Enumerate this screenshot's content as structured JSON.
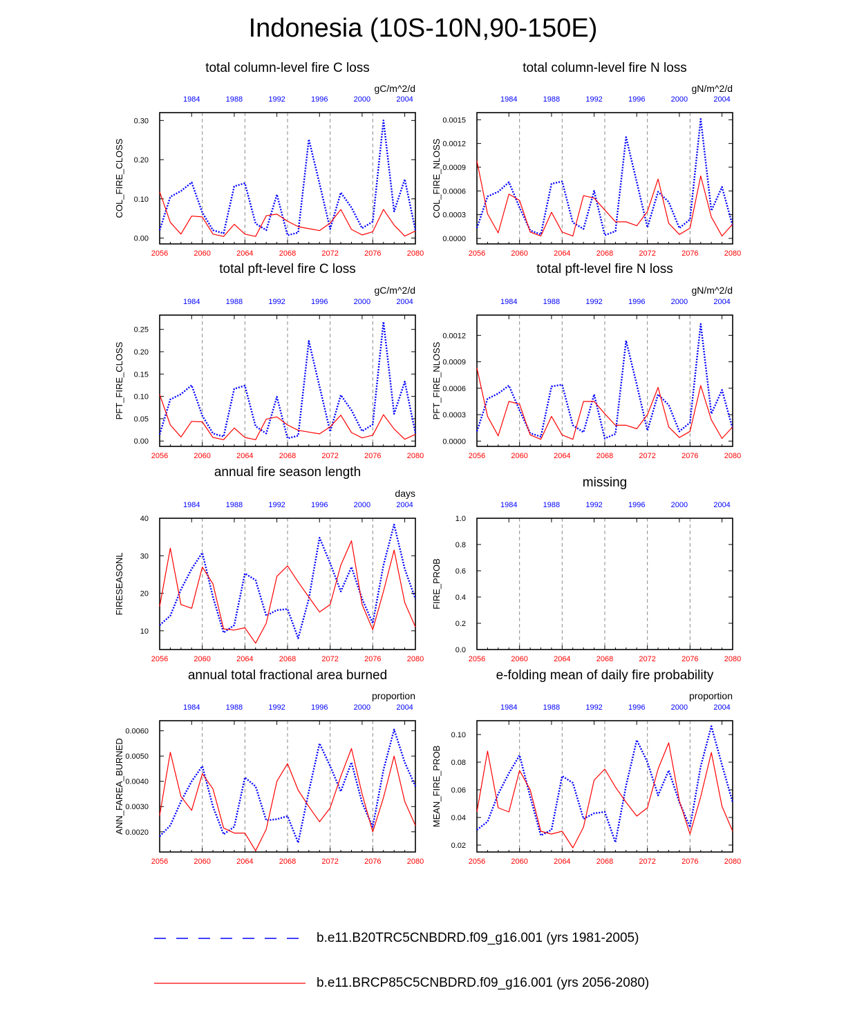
{
  "title": "Indonesia (10S-10N,90-150E)",
  "colors": {
    "baseline": "#0000ff",
    "future": "#ff0000",
    "axis": "#000000",
    "grid": "#888888"
  },
  "axes": {
    "bottom_ticks": [
      "2056",
      "2060",
      "2064",
      "2068",
      "2072",
      "2076",
      "2080"
    ],
    "bottom_values": [
      2056,
      2060,
      2064,
      2068,
      2072,
      2076,
      2080
    ],
    "top_ticks": [
      "1984",
      "1988",
      "1992",
      "1996",
      "2000",
      "2004"
    ],
    "top_values": [
      1984,
      1988,
      1992,
      1996,
      2000,
      2004
    ]
  },
  "legend": {
    "baseline_label": "b.e11.B20TRC5CNBDRD.f09_g16.001 (yrs 1981-2005)",
    "future_label": "b.e11.BRCP85C5CNBDRD.f09_g16.001 (yrs 2056-2080)"
  },
  "panels": {
    "p1": {
      "title": "total column-level fire C loss",
      "units": "gC/m^2/d"
    },
    "p2": {
      "title": "total column-level fire N loss",
      "units": "gN/m^2/d"
    },
    "p3": {
      "title": "total pft-level fire C loss",
      "units": "gC/m^2/d"
    },
    "p4": {
      "title": "total pft-level fire N loss",
      "units": "gN/m^2/d"
    },
    "p5": {
      "title": "annual fire season length",
      "units": "days"
    },
    "p6": {
      "title": "missing",
      "units": ""
    },
    "p7": {
      "title": "annual total fractional area burned",
      "units": "proportion"
    },
    "p8": {
      "title": "e-folding mean of daily fire probability",
      "units": "proportion"
    }
  },
  "chart_data": [
    {
      "type": "line",
      "id": "p1",
      "ylabel": "COL_FIRE_CLOSS",
      "ylim": [
        -0.015,
        0.32
      ],
      "yticks": [
        0,
        0.1,
        0.2,
        0.3
      ],
      "ytick_labels": [
        "0.00",
        "0.10",
        "0.20",
        "0.30"
      ],
      "x": [
        2056,
        2057,
        2058,
        2059,
        2060,
        2061,
        2062,
        2063,
        2064,
        2065,
        2066,
        2067,
        2068,
        2069,
        2070,
        2071,
        2072,
        2073,
        2074,
        2075,
        2076,
        2077,
        2078,
        2079,
        2080
      ],
      "series": [
        {
          "name": "b.e11.B20TRC5CNBDRD.f09_g16.001 (yrs 1981-2005)",
          "values": [
            0.02,
            0.105,
            0.12,
            0.142,
            0.065,
            0.02,
            0.012,
            0.132,
            0.14,
            0.037,
            0.02,
            0.111,
            0.007,
            0.014,
            0.252,
            0.139,
            0.023,
            0.116,
            0.078,
            0.025,
            0.042,
            0.3,
            0.068,
            0.15,
            0.02
          ]
        },
        {
          "name": "b.e11.BRCP85C5CNBDRD.f09_g16.001 (yrs 2056-2080)",
          "values": [
            0.118,
            0.04,
            0.01,
            0.056,
            0.054,
            0.01,
            0.004,
            0.035,
            0.01,
            0.004,
            0.057,
            0.061,
            0.043,
            0.029,
            0.024,
            0.019,
            0.038,
            0.073,
            0.022,
            0.008,
            0.016,
            0.073,
            0.033,
            0.005,
            0.018
          ]
        }
      ]
    },
    {
      "type": "line",
      "id": "p2",
      "ylabel": "COL_FIRE_NLOSS",
      "ylim": [
        -7e-05,
        0.00159
      ],
      "yticks": [
        0,
        0.0003,
        0.0006,
        0.0009,
        0.0012,
        0.0015
      ],
      "ytick_labels": [
        "0.0000",
        "0.0003",
        "0.0006",
        "0.0009",
        "0.0012",
        "0.0015"
      ],
      "x": [
        2056,
        2057,
        2058,
        2059,
        2060,
        2061,
        2062,
        2063,
        2064,
        2065,
        2066,
        2067,
        2068,
        2069,
        2070,
        2071,
        2072,
        2073,
        2074,
        2075,
        2076,
        2077,
        2078,
        2079,
        2080
      ],
      "series": [
        {
          "name": "b.e11.B20TRC5CNBDRD.f09_g16.001 (yrs 1981-2005)",
          "values": [
            0.00013,
            0.00053,
            0.00059,
            0.00071,
            0.00039,
            0.0001,
            5e-05,
            0.00069,
            0.00072,
            0.0002,
            0.00012,
            0.0006,
            4e-05,
            9e-05,
            0.00128,
            0.00071,
            0.00014,
            0.00059,
            0.00046,
            0.00013,
            0.00024,
            0.00151,
            0.00035,
            0.00065,
            0.00016
          ]
        },
        {
          "name": "b.e11.BRCP85C5CNBDRD.f09_g16.001 (yrs 2056-2080)",
          "values": [
            0.00098,
            0.00031,
            7e-05,
            0.00056,
            0.00048,
            8e-05,
            3e-05,
            0.00033,
            8e-05,
            3e-05,
            0.00054,
            0.00051,
            0.00036,
            0.00021,
            0.00021,
            0.00016,
            0.00034,
            0.00075,
            0.00019,
            5e-05,
            0.00013,
            0.00079,
            0.00027,
            3e-05,
            0.00018
          ]
        }
      ]
    },
    {
      "type": "line",
      "id": "p3",
      "ylabel": "PFT_FIRE_CLOSS",
      "ylim": [
        -0.012,
        0.282
      ],
      "yticks": [
        0,
        0.05,
        0.1,
        0.15,
        0.2,
        0.25
      ],
      "ytick_labels": [
        "0.00",
        "0.05",
        "0.10",
        "0.15",
        "0.20",
        "0.25"
      ],
      "x": [
        2056,
        2057,
        2058,
        2059,
        2060,
        2061,
        2062,
        2063,
        2064,
        2065,
        2066,
        2067,
        2068,
        2069,
        2070,
        2071,
        2072,
        2073,
        2074,
        2075,
        2076,
        2077,
        2078,
        2079,
        2080
      ],
      "series": [
        {
          "name": "b.e11.B20TRC5CNBDRD.f09_g16.001 (yrs 1981-2005)",
          "values": [
            0.015,
            0.093,
            0.105,
            0.125,
            0.057,
            0.017,
            0.01,
            0.117,
            0.124,
            0.033,
            0.017,
            0.099,
            0.006,
            0.012,
            0.224,
            0.122,
            0.021,
            0.103,
            0.069,
            0.022,
            0.037,
            0.267,
            0.061,
            0.133,
            0.018
          ]
        },
        {
          "name": "b.e11.BRCP85C5CNBDRD.f09_g16.001 (yrs 2056-2080)",
          "values": [
            0.104,
            0.036,
            0.009,
            0.044,
            0.043,
            0.008,
            0.003,
            0.029,
            0.008,
            0.003,
            0.049,
            0.054,
            0.036,
            0.024,
            0.02,
            0.016,
            0.032,
            0.058,
            0.019,
            0.007,
            0.013,
            0.059,
            0.027,
            0.004,
            0.015
          ]
        }
      ]
    },
    {
      "type": "line",
      "id": "p4",
      "ylabel": "PFT_FIRE_NLOSS",
      "ylim": [
        -6e-05,
        0.00143
      ],
      "yticks": [
        0,
        0.0003,
        0.0006,
        0.0009,
        0.0012
      ],
      "ytick_labels": [
        "0.0000",
        "0.0003",
        "0.0006",
        "0.0009",
        "0.0012"
      ],
      "x": [
        2056,
        2057,
        2058,
        2059,
        2060,
        2061,
        2062,
        2063,
        2064,
        2065,
        2066,
        2067,
        2068,
        2069,
        2070,
        2071,
        2072,
        2073,
        2074,
        2075,
        2076,
        2077,
        2078,
        2079,
        2080
      ],
      "series": [
        {
          "name": "b.e11.B20TRC5CNBDRD.f09_g16.001 (yrs 1981-2005)",
          "values": [
            0.00011,
            0.00048,
            0.00054,
            0.00063,
            0.00035,
            9e-05,
            5e-05,
            0.00062,
            0.00064,
            0.00018,
            0.0001,
            0.00053,
            3e-05,
            8e-05,
            0.00114,
            0.00064,
            0.00012,
            0.00053,
            0.00041,
            0.00011,
            0.00021,
            0.00133,
            0.00031,
            0.00058,
            0.00014
          ]
        },
        {
          "name": "b.e11.BRCP85C5CNBDRD.f09_g16.001 (yrs 2056-2080)",
          "values": [
            0.00083,
            0.00028,
            6e-05,
            0.00045,
            0.00042,
            7e-05,
            2e-05,
            0.00028,
            7e-05,
            2e-05,
            0.00045,
            0.00045,
            0.00031,
            0.00018,
            0.00018,
            0.00014,
            0.0003,
            0.00061,
            0.00016,
            4e-05,
            0.00011,
            0.00063,
            0.00024,
            3e-05,
            0.00016
          ]
        }
      ]
    },
    {
      "type": "line",
      "id": "p5",
      "ylabel": "FIRESEASONL",
      "ylim": [
        5,
        40
      ],
      "yticks": [
        10,
        20,
        30,
        40
      ],
      "ytick_labels": [
        "10",
        "20",
        "30",
        "40"
      ],
      "x": [
        2056,
        2057,
        2058,
        2059,
        2060,
        2061,
        2062,
        2063,
        2064,
        2065,
        2066,
        2067,
        2068,
        2069,
        2070,
        2071,
        2072,
        2073,
        2074,
        2075,
        2076,
        2077,
        2078,
        2079,
        2080
      ],
      "series": [
        {
          "name": "b.e11.B20TRC5CNBDRD.f09_g16.001 (yrs 1981-2005)",
          "values": [
            11.5,
            14.0,
            21.0,
            26.5,
            30.8,
            19.0,
            9.5,
            11.5,
            25.3,
            23.5,
            14.0,
            15.5,
            15.8,
            8.0,
            18.5,
            34.8,
            28.0,
            20.5,
            27.0,
            18.5,
            12.0,
            27.5,
            38.3,
            26.5,
            18.5
          ]
        },
        {
          "name": "b.e11.BRCP85C5CNBDRD.f09_g16.001 (yrs 2056-2080)",
          "values": [
            16.5,
            32.0,
            17.0,
            16.0,
            27.0,
            22.5,
            10.5,
            10.2,
            10.8,
            6.7,
            12.0,
            24.5,
            27.3,
            23.0,
            19.0,
            15.0,
            17.0,
            27.5,
            34.0,
            17.0,
            10.3,
            20.5,
            31.5,
            17.5,
            11.0
          ]
        }
      ]
    },
    {
      "type": "line",
      "id": "p6",
      "ylabel": "FIRE_PROB",
      "ylim": [
        0,
        1
      ],
      "yticks": [
        0,
        0.2,
        0.4,
        0.6,
        0.8,
        1.0
      ],
      "ytick_labels": [
        "0.0",
        "0.2",
        "0.4",
        "0.6",
        "0.8",
        "1.0"
      ],
      "x": [],
      "series": []
    },
    {
      "type": "line",
      "id": "p7",
      "ylabel": "ANN_FAREA_BURNED",
      "ylim": [
        0.0012,
        0.0064
      ],
      "yticks": [
        0.002,
        0.003,
        0.004,
        0.005,
        0.006
      ],
      "ytick_labels": [
        "0.0020",
        "0.0030",
        "0.0040",
        "0.0050",
        "0.0060"
      ],
      "x": [
        2056,
        2057,
        2058,
        2059,
        2060,
        2061,
        2062,
        2063,
        2064,
        2065,
        2066,
        2067,
        2068,
        2069,
        2070,
        2071,
        2072,
        2073,
        2074,
        2075,
        2076,
        2077,
        2078,
        2079,
        2080
      ],
      "series": [
        {
          "name": "b.e11.B20TRC5CNBDRD.f09_g16.001 (yrs 1981-2005)",
          "values": [
            0.00182,
            0.00225,
            0.0032,
            0.004,
            0.0046,
            0.003,
            0.0019,
            0.0022,
            0.00415,
            0.0038,
            0.00245,
            0.0025,
            0.00262,
            0.00157,
            0.0036,
            0.0055,
            0.0046,
            0.0036,
            0.00475,
            0.00315,
            0.0022,
            0.00445,
            0.00605,
            0.00475,
            0.0038
          ]
        },
        {
          "name": "b.e11.BRCP85C5CNBDRD.f09_g16.001 (yrs 2056-2080)",
          "values": [
            0.00265,
            0.00515,
            0.0034,
            0.00285,
            0.0043,
            0.0037,
            0.00215,
            0.00195,
            0.00195,
            0.00125,
            0.0021,
            0.004,
            0.0047,
            0.00365,
            0.003,
            0.0024,
            0.00295,
            0.0042,
            0.0053,
            0.0035,
            0.002,
            0.00335,
            0.005,
            0.0032,
            0.00225
          ]
        }
      ]
    },
    {
      "type": "line",
      "id": "p8",
      "ylabel": "MEAN_FIRE_PROB",
      "ylim": [
        0.015,
        0.11
      ],
      "yticks": [
        0.02,
        0.04,
        0.06,
        0.08,
        0.1
      ],
      "ytick_labels": [
        "0.02",
        "0.04",
        "0.06",
        "0.08",
        "0.10"
      ],
      "x": [
        2056,
        2057,
        2058,
        2059,
        2060,
        2061,
        2062,
        2063,
        2064,
        2065,
        2066,
        2067,
        2068,
        2069,
        2070,
        2071,
        2072,
        2073,
        2074,
        2075,
        2076,
        2077,
        2078,
        2079,
        2080
      ],
      "series": [
        {
          "name": "b.e11.B20TRC5CNBDRD.f09_g16.001 (yrs 1981-2005)",
          "values": [
            0.031,
            0.037,
            0.057,
            0.072,
            0.085,
            0.055,
            0.027,
            0.031,
            0.07,
            0.065,
            0.039,
            0.043,
            0.044,
            0.022,
            0.063,
            0.096,
            0.08,
            0.056,
            0.074,
            0.051,
            0.033,
            0.077,
            0.106,
            0.078,
            0.051
          ]
        },
        {
          "name": "b.e11.BRCP85C5CNBDRD.f09_g16.001 (yrs 2056-2080)",
          "values": [
            0.044,
            0.088,
            0.047,
            0.044,
            0.074,
            0.06,
            0.03,
            0.028,
            0.03,
            0.018,
            0.033,
            0.067,
            0.075,
            0.062,
            0.051,
            0.041,
            0.047,
            0.075,
            0.094,
            0.052,
            0.028,
            0.055,
            0.087,
            0.048,
            0.03
          ]
        }
      ]
    }
  ]
}
